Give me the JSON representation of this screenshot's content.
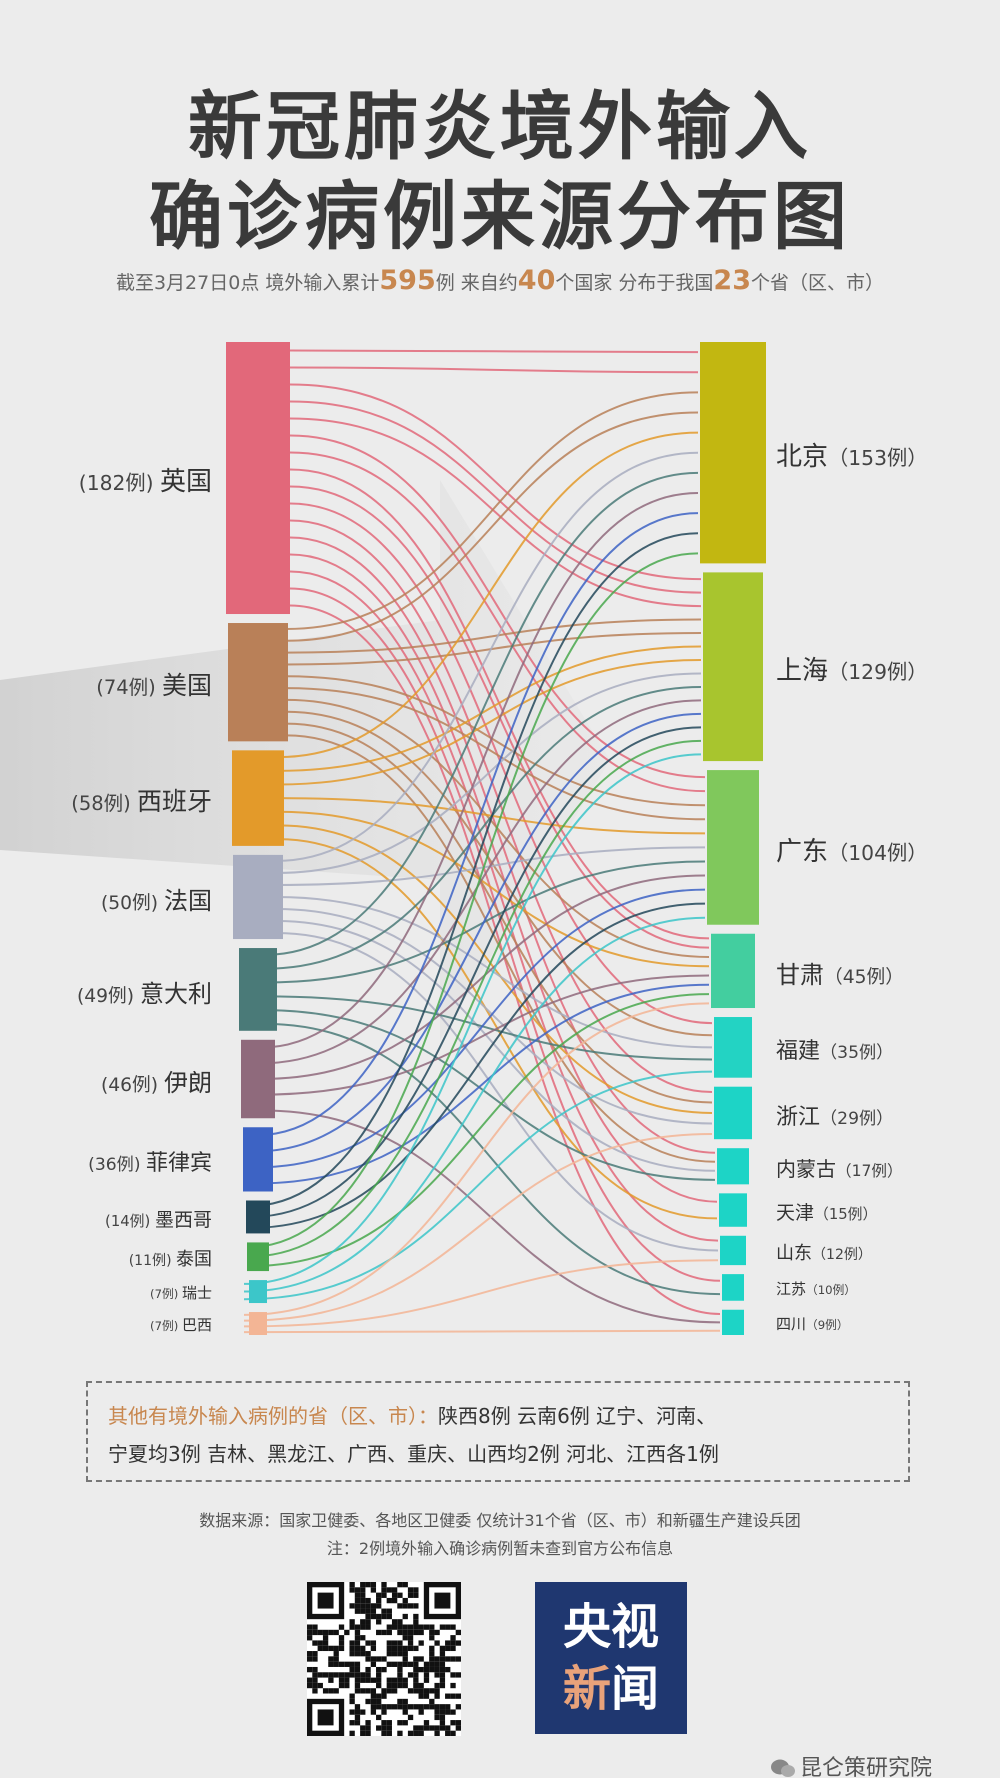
{
  "title_line1": "新冠肺炎境外输入",
  "title_line2": "确诊病例来源分布图",
  "subtitle": {
    "p1": "截至3月27日0点  境外输入累计",
    "total": "595",
    "p2": "例  来自约",
    "countries": "40",
    "p3": "个国家  分布于我国",
    "provinces": "23",
    "p4": "个省（区、市）"
  },
  "chart_data": {
    "type": "sankey",
    "sources": [
      {
        "name": "英国",
        "count_label": "(182例)",
        "value": 182,
        "color": "#e2687a"
      },
      {
        "name": "美国",
        "count_label": "(74例)",
        "value": 74,
        "color": "#b98058"
      },
      {
        "name": "西班牙",
        "count_label": "(58例)",
        "value": 58,
        "color": "#e39a2a"
      },
      {
        "name": "法国",
        "count_label": "(50例)",
        "value": 50,
        "color": "#a8adc0"
      },
      {
        "name": "意大利",
        "count_label": "(49例)",
        "value": 49,
        "color": "#4a7a78"
      },
      {
        "name": "伊朗",
        "count_label": "(46例)",
        "value": 46,
        "color": "#8f6a7c"
      },
      {
        "name": "菲律宾",
        "count_label": "(36例)",
        "value": 36,
        "color": "#3d63c4"
      },
      {
        "name": "墨西哥",
        "count_label": "(14例)",
        "value": 14,
        "color": "#23485a"
      },
      {
        "name": "泰国",
        "count_label": "(11例)",
        "value": 11,
        "color": "#49a84e"
      },
      {
        "name": "瑞士",
        "count_label": "(7例)",
        "value": 7,
        "color": "#3cc6c9"
      },
      {
        "name": "巴西",
        "count_label": "(7例)",
        "value": 7,
        "color": "#f3b595"
      }
    ],
    "targets": [
      {
        "name": "北京",
        "count_label": "（153例）",
        "value": 153,
        "color": "#c2b711"
      },
      {
        "name": "上海",
        "count_label": "（129例）",
        "value": 129,
        "color": "#a8c52e"
      },
      {
        "name": "广东",
        "count_label": "（104例）",
        "value": 104,
        "color": "#80c85c"
      },
      {
        "name": "甘肃",
        "count_label": "（45例）",
        "value": 45,
        "color": "#43ce9f"
      },
      {
        "name": "福建",
        "count_label": "（35例）",
        "value": 35,
        "color": "#23d3c3"
      },
      {
        "name": "浙江",
        "count_label": "（29例）",
        "value": 29,
        "color": "#1dd4c6"
      },
      {
        "name": "内蒙古",
        "count_label": "（17例）",
        "value": 17,
        "color": "#1dd4c6"
      },
      {
        "name": "天津",
        "count_label": "（15例）",
        "value": 15,
        "color": "#1dd4c6"
      },
      {
        "name": "山东",
        "count_label": "（12例）",
        "value": 12,
        "color": "#1dd4c6"
      },
      {
        "name": "江苏",
        "count_label": "（10例）",
        "value": 10,
        "color": "#1dd4c6"
      },
      {
        "name": "四川",
        "count_label": "（9例）",
        "value": 9,
        "color": "#1dd4c6"
      }
    ],
    "links": [
      [
        0,
        0
      ],
      [
        0,
        0
      ],
      [
        0,
        1
      ],
      [
        0,
        1
      ],
      [
        0,
        1
      ],
      [
        0,
        2
      ],
      [
        0,
        2
      ],
      [
        0,
        3
      ],
      [
        0,
        3
      ],
      [
        0,
        4
      ],
      [
        0,
        5
      ],
      [
        0,
        6
      ],
      [
        0,
        7
      ],
      [
        0,
        8
      ],
      [
        0,
        9
      ],
      [
        0,
        10
      ],
      [
        1,
        0
      ],
      [
        1,
        0
      ],
      [
        1,
        1
      ],
      [
        1,
        1
      ],
      [
        1,
        2
      ],
      [
        1,
        2
      ],
      [
        1,
        3
      ],
      [
        1,
        4
      ],
      [
        1,
        5
      ],
      [
        1,
        6
      ],
      [
        2,
        0
      ],
      [
        2,
        1
      ],
      [
        2,
        1
      ],
      [
        2,
        2
      ],
      [
        2,
        3
      ],
      [
        2,
        5
      ],
      [
        2,
        7
      ],
      [
        3,
        0
      ],
      [
        3,
        1
      ],
      [
        3,
        2
      ],
      [
        3,
        4
      ],
      [
        3,
        5
      ],
      [
        3,
        6
      ],
      [
        3,
        8
      ],
      [
        4,
        0
      ],
      [
        4,
        1
      ],
      [
        4,
        2
      ],
      [
        4,
        4
      ],
      [
        4,
        6
      ],
      [
        4,
        9
      ],
      [
        5,
        0
      ],
      [
        5,
        1
      ],
      [
        5,
        2
      ],
      [
        5,
        3
      ],
      [
        5,
        10
      ],
      [
        6,
        0
      ],
      [
        6,
        1
      ],
      [
        6,
        2
      ],
      [
        6,
        3
      ],
      [
        7,
        0
      ],
      [
        7,
        1
      ],
      [
        7,
        2
      ],
      [
        8,
        0
      ],
      [
        8,
        1
      ],
      [
        8,
        3
      ],
      [
        9,
        1
      ],
      [
        9,
        2
      ],
      [
        9,
        4
      ],
      [
        10,
        3
      ],
      [
        10,
        5
      ],
      [
        10,
        8
      ],
      [
        10,
        10
      ]
    ]
  },
  "other_provinces": {
    "head": "其他有境外输入病例的省（区、市）：",
    "line1": "陕西8例  云南6例  辽宁、河南、",
    "line2": "宁夏均3例  吉林、黑龙江、广西、重庆、山西均2例  河北、江西各1例"
  },
  "source_line1": "数据来源：国家卫健委、各地区卫健委    仅统计31个省（区、市）和新疆生产建设兵团",
  "source_line2": "注：2例境外输入确诊病例暂未查到官方公布信息",
  "logo": {
    "line1": "央视",
    "line2a": "新",
    "line2b": "闻",
    "bg": "#1f3770"
  },
  "watermark": "昆仑策研究院",
  "wechat_icon": "wechat-icon",
  "qr_icon": "qr-code-icon"
}
